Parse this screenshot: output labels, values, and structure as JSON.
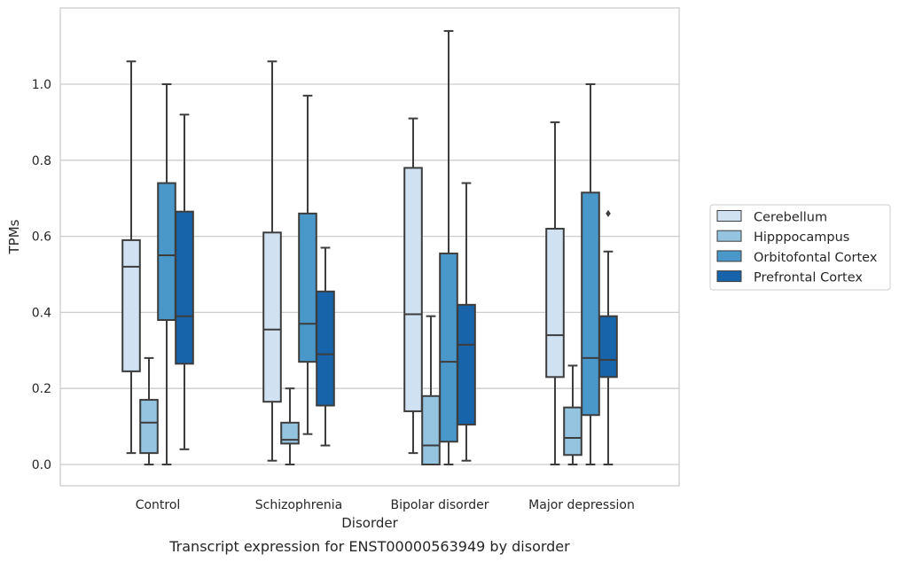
{
  "chart_data": {
    "type": "boxplot",
    "xlabel": "Disorder",
    "ylabel": "TPMs",
    "caption": "Transcript expression for ENST00000563949 by disorder",
    "ylim": [
      -0.055,
      1.206
    ],
    "yticks": [
      0.0,
      0.2,
      0.4,
      0.6,
      0.8,
      1.0
    ],
    "ytick_labels": [
      "0.0",
      "0.2",
      "0.4",
      "0.6",
      "0.8",
      "1.0"
    ],
    "grid": true,
    "legend_position": "right",
    "categories": [
      "Control",
      "Schizophrenia",
      "Bipolar disorder",
      "Major depression"
    ],
    "series": [
      {
        "name": "Cerebellum",
        "color": "#d0e1f2",
        "boxes": [
          {
            "whislo": 0.03,
            "q1": 0.245,
            "med": 0.52,
            "q3": 0.59,
            "whishi": 1.06,
            "fliers": []
          },
          {
            "whislo": 0.01,
            "q1": 0.165,
            "med": 0.355,
            "q3": 0.61,
            "whishi": 1.06,
            "fliers": []
          },
          {
            "whislo": 0.03,
            "q1": 0.14,
            "med": 0.395,
            "q3": 0.78,
            "whishi": 0.91,
            "fliers": []
          },
          {
            "whislo": 0.0,
            "q1": 0.23,
            "med": 0.34,
            "q3": 0.62,
            "whishi": 0.9,
            "fliers": []
          }
        ]
      },
      {
        "name": "Hipppocampus",
        "color": "#94c4df",
        "boxes": [
          {
            "whislo": 0.0,
            "q1": 0.03,
            "med": 0.11,
            "q3": 0.17,
            "whishi": 0.28,
            "fliers": []
          },
          {
            "whislo": 0.0,
            "q1": 0.055,
            "med": 0.065,
            "q3": 0.11,
            "whishi": 0.2,
            "fliers": []
          },
          {
            "whislo": 0.0,
            "q1": 0.0,
            "med": 0.05,
            "q3": 0.18,
            "whishi": 0.39,
            "fliers": []
          },
          {
            "whislo": 0.0,
            "q1": 0.025,
            "med": 0.07,
            "q3": 0.15,
            "whishi": 0.26,
            "fliers": []
          }
        ]
      },
      {
        "name": "Orbitofontal Cortex",
        "color": "#4a98c9",
        "boxes": [
          {
            "whislo": 0.0,
            "q1": 0.38,
            "med": 0.55,
            "q3": 0.74,
            "whishi": 1.0,
            "fliers": []
          },
          {
            "whislo": 0.08,
            "q1": 0.27,
            "med": 0.37,
            "q3": 0.66,
            "whishi": 0.97,
            "fliers": []
          },
          {
            "whislo": 0.0,
            "q1": 0.06,
            "med": 0.27,
            "q3": 0.555,
            "whishi": 1.14,
            "fliers": []
          },
          {
            "whislo": 0.0,
            "q1": 0.13,
            "med": 0.28,
            "q3": 0.715,
            "whishi": 1.0,
            "fliers": []
          }
        ]
      },
      {
        "name": "Prefrontal Cortex",
        "color": "#1764ab",
        "boxes": [
          {
            "whislo": 0.04,
            "q1": 0.265,
            "med": 0.39,
            "q3": 0.665,
            "whishi": 0.92,
            "fliers": []
          },
          {
            "whislo": 0.05,
            "q1": 0.155,
            "med": 0.29,
            "q3": 0.455,
            "whishi": 0.57,
            "fliers": []
          },
          {
            "whislo": 0.01,
            "q1": 0.105,
            "med": 0.315,
            "q3": 0.42,
            "whishi": 0.74,
            "fliers": []
          },
          {
            "whislo": 0.0,
            "q1": 0.23,
            "med": 0.275,
            "q3": 0.39,
            "whishi": 0.56,
            "fliers": [
              0.66
            ]
          }
        ]
      }
    ]
  }
}
